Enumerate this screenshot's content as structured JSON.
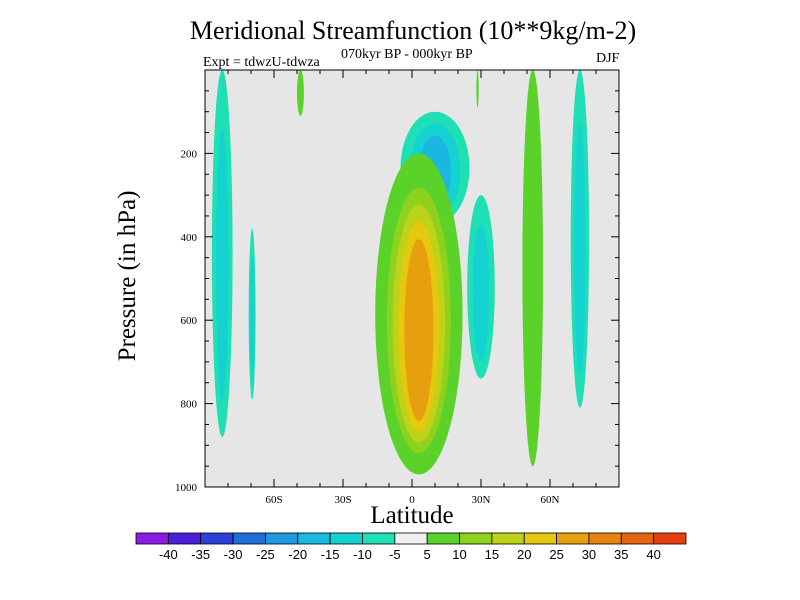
{
  "header": {
    "title": "Meridional Streamfunction (10**9kg/m-2)",
    "subtitle": "070kyr BP - 000kyr BP",
    "experiment": "Expt = tdwzU-tdwza",
    "season": "DJF"
  },
  "chart_data": {
    "type": "heatmap",
    "title": "Meridional Streamfunction (10**9kg/m-2)",
    "subtitle": "070kyr BP - 000kyr BP",
    "xlabel": "Latitude",
    "ylabel": "Pressure (in hPa)",
    "xlim": [
      -90,
      90
    ],
    "ylim": [
      1000,
      0
    ],
    "y_inverted": true,
    "x_ticks": [
      {
        "value": -60,
        "label": "60S"
      },
      {
        "value": -30,
        "label": "30S"
      },
      {
        "value": 0,
        "label": "0"
      },
      {
        "value": 30,
        "label": "30N"
      },
      {
        "value": 60,
        "label": "60N"
      }
    ],
    "y_ticks": [
      {
        "value": 200,
        "label": "200"
      },
      {
        "value": 400,
        "label": "400"
      },
      {
        "value": 600,
        "label": "600"
      },
      {
        "value": 800,
        "label": "800"
      },
      {
        "value": 1000,
        "label": "1000"
      }
    ],
    "background_color": "#e6e6e6",
    "colorbar": {
      "levels": [
        -40,
        -35,
        -30,
        -25,
        -20,
        -15,
        -10,
        -5,
        5,
        10,
        15,
        20,
        25,
        30,
        35,
        40
      ],
      "level_labels": [
        "-40",
        "-35",
        "-30",
        "-25",
        "-20",
        "-15",
        "-10",
        "-5",
        "5",
        "10",
        "15",
        "20",
        "25",
        "30",
        "35",
        "40"
      ],
      "colors": [
        "#8a1ce6",
        "#4b1fd9",
        "#2a40d8",
        "#1f6fd8",
        "#1e98df",
        "#1ab8e0",
        "#14d2d2",
        "#1ee0b4",
        "#f0f0f0",
        "#5ad22a",
        "#8fd21e",
        "#bed21a",
        "#e6c80f",
        "#e6a00f",
        "#e6820f",
        "#e6640f",
        "#e6400f"
      ]
    },
    "contour_regions": [
      {
        "name": "southern-polar-band",
        "value": -10,
        "lat_range": [
          -87,
          -78
        ],
        "p_range": [
          0,
          880
        ]
      },
      {
        "name": "southern-midlat-strip",
        "value": -10,
        "lat_range": [
          -71,
          -68
        ],
        "p_range": [
          380,
          790
        ]
      },
      {
        "name": "upper-tropical-negative-lobe",
        "value": -15,
        "lat_range": [
          -5,
          25
        ],
        "p_range": [
          100,
          370
        ]
      },
      {
        "name": "tropical-positive-cell",
        "value": 30,
        "lat_range": [
          -16,
          22
        ],
        "p_range": [
          200,
          970
        ]
      },
      {
        "name": "subtropical-negative-lobe",
        "value": -10,
        "lat_range": [
          24,
          36
        ],
        "p_range": [
          300,
          740
        ]
      },
      {
        "name": "northern-midlat-positive-band",
        "value": 10,
        "lat_range": [
          48,
          57
        ],
        "p_range": [
          0,
          950
        ]
      },
      {
        "name": "northern-highlat-negative-band",
        "value": -10,
        "lat_range": [
          69,
          77
        ],
        "p_range": [
          0,
          810
        ]
      },
      {
        "name": "small-positive-patch-40S",
        "value": 5,
        "lat_range": [
          -50,
          -47
        ],
        "p_range": [
          0,
          110
        ]
      },
      {
        "name": "small-positive-patch-30N",
        "value": 5,
        "lat_range": [
          28,
          29
        ],
        "p_range": [
          0,
          90
        ]
      }
    ]
  }
}
